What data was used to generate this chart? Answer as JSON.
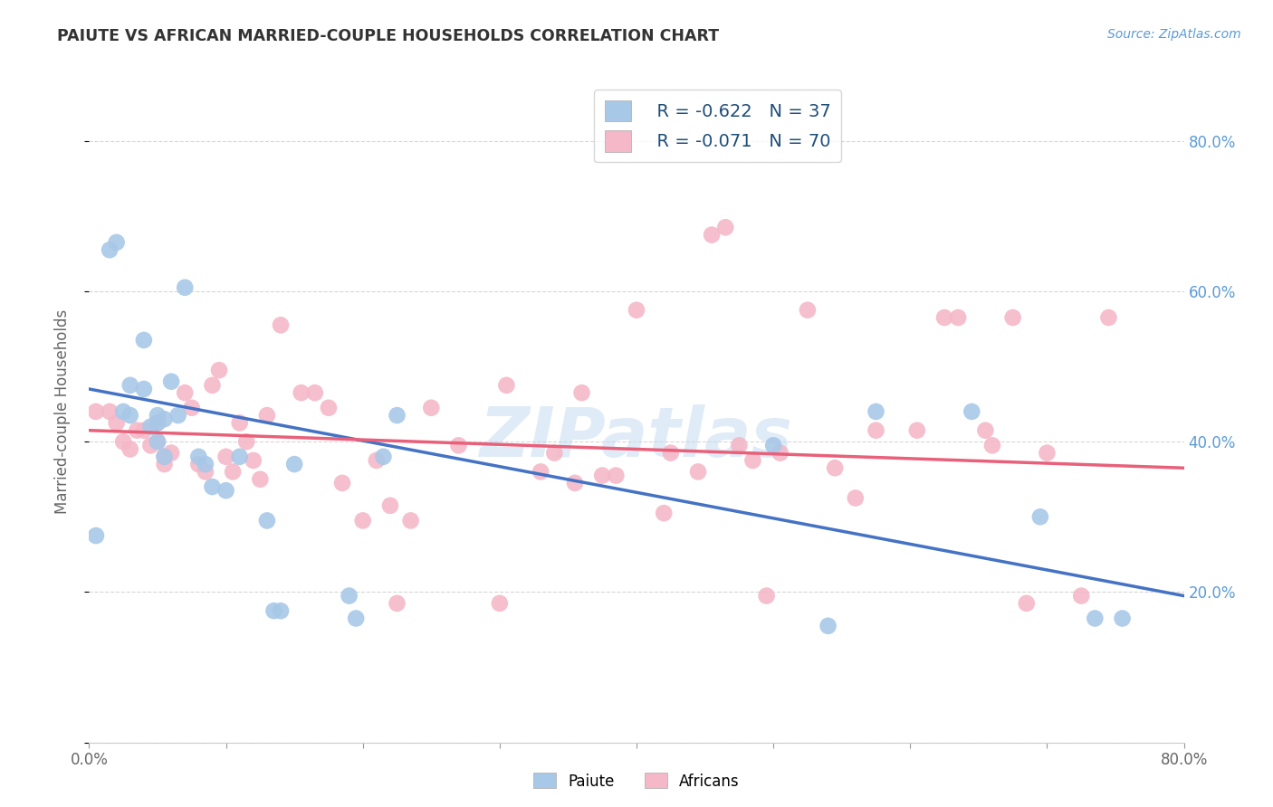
{
  "title": "PAIUTE VS AFRICAN MARRIED-COUPLE HOUSEHOLDS CORRELATION CHART",
  "source": "Source: ZipAtlas.com",
  "ylabel": "Married-couple Households",
  "yticks": [
    0.0,
    0.2,
    0.4,
    0.6,
    0.8
  ],
  "ytick_labels": [
    "",
    "20.0%",
    "40.0%",
    "60.0%",
    "80.0%"
  ],
  "xlim": [
    0.0,
    0.8
  ],
  "ylim": [
    0.05,
    0.88
  ],
  "legend_paiute_R": "R = -0.622",
  "legend_paiute_N": "N = 37",
  "legend_african_R": "R = -0.071",
  "legend_african_N": "N = 70",
  "color_paiute": "#A8C8E8",
  "color_african": "#F4B8C8",
  "color_paiute_line": "#4472C4",
  "color_african_line": "#E8607A",
  "watermark": "ZIPatlas",
  "paiute_line_start": 0.47,
  "paiute_line_end": 0.195,
  "african_line_start": 0.415,
  "african_line_end": 0.365,
  "paiute_x": [
    0.005,
    0.015,
    0.02,
    0.025,
    0.03,
    0.03,
    0.04,
    0.04,
    0.045,
    0.05,
    0.05,
    0.05,
    0.055,
    0.055,
    0.06,
    0.065,
    0.07,
    0.08,
    0.085,
    0.09,
    0.1,
    0.11,
    0.13,
    0.135,
    0.14,
    0.15,
    0.19,
    0.195,
    0.215,
    0.225,
    0.5,
    0.54,
    0.575,
    0.645,
    0.695,
    0.735,
    0.755
  ],
  "paiute_y": [
    0.275,
    0.655,
    0.665,
    0.44,
    0.435,
    0.475,
    0.535,
    0.47,
    0.42,
    0.425,
    0.435,
    0.4,
    0.38,
    0.43,
    0.48,
    0.435,
    0.605,
    0.38,
    0.37,
    0.34,
    0.335,
    0.38,
    0.295,
    0.175,
    0.175,
    0.37,
    0.195,
    0.165,
    0.38,
    0.435,
    0.395,
    0.155,
    0.44,
    0.44,
    0.3,
    0.165,
    0.165
  ],
  "african_x": [
    0.005,
    0.015,
    0.02,
    0.025,
    0.03,
    0.035,
    0.04,
    0.045,
    0.05,
    0.05,
    0.055,
    0.055,
    0.06,
    0.07,
    0.075,
    0.08,
    0.085,
    0.09,
    0.095,
    0.1,
    0.105,
    0.11,
    0.115,
    0.12,
    0.125,
    0.13,
    0.14,
    0.155,
    0.165,
    0.175,
    0.185,
    0.2,
    0.21,
    0.22,
    0.225,
    0.235,
    0.25,
    0.27,
    0.3,
    0.305,
    0.33,
    0.34,
    0.355,
    0.36,
    0.375,
    0.385,
    0.4,
    0.42,
    0.425,
    0.445,
    0.455,
    0.465,
    0.475,
    0.485,
    0.495,
    0.505,
    0.525,
    0.545,
    0.56,
    0.575,
    0.605,
    0.625,
    0.635,
    0.655,
    0.66,
    0.675,
    0.685,
    0.7,
    0.725,
    0.745
  ],
  "african_y": [
    0.44,
    0.44,
    0.425,
    0.4,
    0.39,
    0.415,
    0.415,
    0.395,
    0.425,
    0.4,
    0.37,
    0.38,
    0.385,
    0.465,
    0.445,
    0.37,
    0.36,
    0.475,
    0.495,
    0.38,
    0.36,
    0.425,
    0.4,
    0.375,
    0.35,
    0.435,
    0.555,
    0.465,
    0.465,
    0.445,
    0.345,
    0.295,
    0.375,
    0.315,
    0.185,
    0.295,
    0.445,
    0.395,
    0.185,
    0.475,
    0.36,
    0.385,
    0.345,
    0.465,
    0.355,
    0.355,
    0.575,
    0.305,
    0.385,
    0.36,
    0.675,
    0.685,
    0.395,
    0.375,
    0.195,
    0.385,
    0.575,
    0.365,
    0.325,
    0.415,
    0.415,
    0.565,
    0.565,
    0.415,
    0.395,
    0.565,
    0.185,
    0.385,
    0.195,
    0.565
  ]
}
